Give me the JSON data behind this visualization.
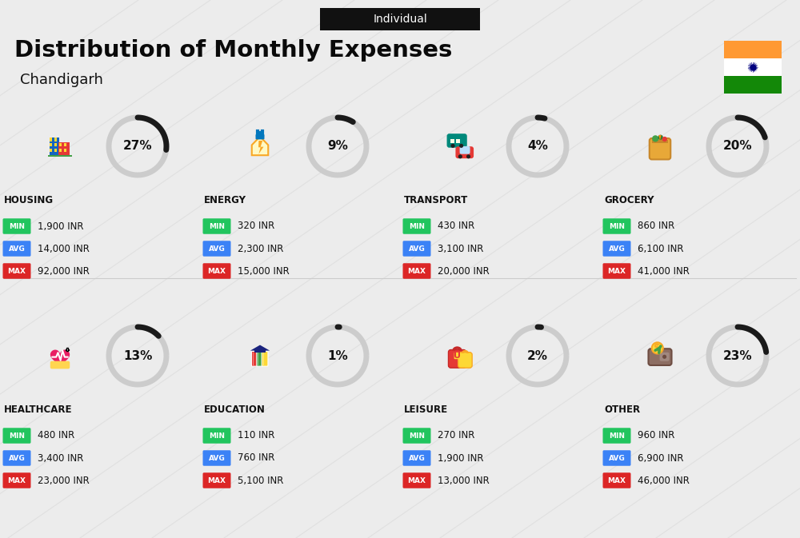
{
  "title": "Distribution of Monthly Expenses",
  "subtitle": "Chandigarh",
  "tag": "Individual",
  "bg_color": "#ececec",
  "categories": [
    {
      "name": "HOUSING",
      "pct": 27,
      "min": "1,900 INR",
      "avg": "14,000 INR",
      "max": "92,000 INR",
      "row": 0,
      "col": 0
    },
    {
      "name": "ENERGY",
      "pct": 9,
      "min": "320 INR",
      "avg": "2,300 INR",
      "max": "15,000 INR",
      "row": 0,
      "col": 1
    },
    {
      "name": "TRANSPORT",
      "pct": 4,
      "min": "430 INR",
      "avg": "3,100 INR",
      "max": "20,000 INR",
      "row": 0,
      "col": 2
    },
    {
      "name": "GROCERY",
      "pct": 20,
      "min": "860 INR",
      "avg": "6,100 INR",
      "max": "41,000 INR",
      "row": 0,
      "col": 3
    },
    {
      "name": "HEALTHCARE",
      "pct": 13,
      "min": "480 INR",
      "avg": "3,400 INR",
      "max": "23,000 INR",
      "row": 1,
      "col": 0
    },
    {
      "name": "EDUCATION",
      "pct": 1,
      "min": "110 INR",
      "avg": "760 INR",
      "max": "5,100 INR",
      "row": 1,
      "col": 1
    },
    {
      "name": "LEISURE",
      "pct": 2,
      "min": "270 INR",
      "avg": "1,900 INR",
      "max": "13,000 INR",
      "row": 1,
      "col": 2
    },
    {
      "name": "OTHER",
      "pct": 23,
      "min": "960 INR",
      "avg": "6,900 INR",
      "max": "46,000 INR",
      "row": 1,
      "col": 3
    }
  ],
  "min_color": "#22c55e",
  "avg_color": "#3b82f6",
  "max_color": "#dc2626"
}
